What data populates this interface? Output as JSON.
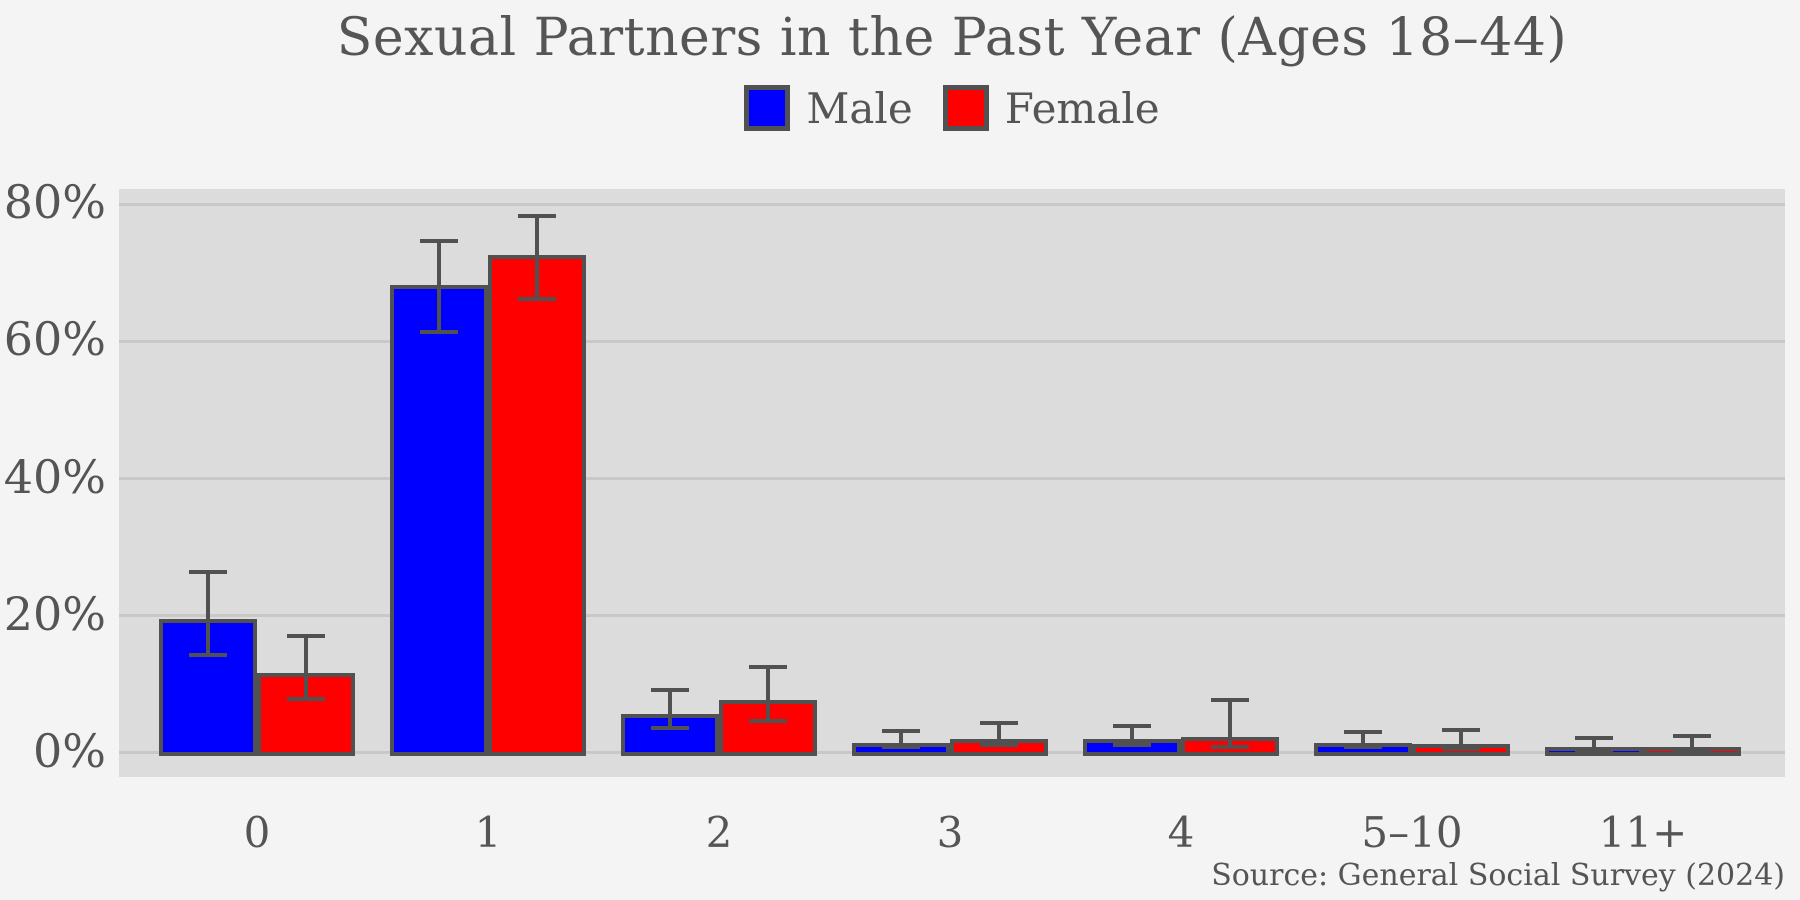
{
  "title": "Sexual Partners in the Past Year (Ages 18–44)",
  "source_credit": "Source: General Social Survey (2024)",
  "colors": {
    "page_background": "#f4f4f4",
    "plot_background": "#dcdcdc",
    "gridline": "#c8c8c8",
    "text": "#555555",
    "bar_edge": "#515151",
    "error_bar": "#515151",
    "male": "#0000ff",
    "female": "#ff0000"
  },
  "legend": {
    "items": [
      {
        "label": "Male",
        "color": "#0000ff"
      },
      {
        "label": "Female",
        "color": "#ff0000"
      }
    ]
  },
  "chart_data": {
    "type": "bar",
    "title": "Sexual Partners in the Past Year (Ages 18–44)",
    "xlabel": "",
    "ylabel": "",
    "categories": [
      "0",
      "1",
      "2",
      "3",
      "4",
      "5–10",
      "11+"
    ],
    "series": [
      {
        "name": "Male",
        "color": "#0000ff",
        "values": [
          19.5,
          68.2,
          5.7,
          1.4,
          2.0,
          1.4,
          0.9
        ],
        "err_low": [
          14.3,
          61.4,
          3.7,
          0.9,
          1.2,
          0.9,
          0.3
        ],
        "err_high": [
          26.4,
          74.6,
          9.2,
          3.2,
          4.0,
          3.1,
          2.2
        ]
      },
      {
        "name": "Female",
        "color": "#ff0000",
        "values": [
          11.6,
          72.6,
          7.7,
          2.1,
          2.3,
          1.3,
          0.9
        ],
        "err_low": [
          7.8,
          66.2,
          4.7,
          1.2,
          0.8,
          0.6,
          0.3
        ],
        "err_high": [
          17.1,
          78.2,
          12.5,
          4.3,
          7.7,
          3.4,
          2.5
        ]
      }
    ],
    "yticks": [
      {
        "value": 0,
        "label": "0%"
      },
      {
        "value": 20,
        "label": "20%"
      },
      {
        "value": 40,
        "label": "40%"
      },
      {
        "value": 60,
        "label": "60%"
      },
      {
        "value": 80,
        "label": "80%"
      }
    ],
    "ylim": [
      -3.5,
      82.2
    ],
    "grid": true,
    "error_bars": true,
    "legend_position": "top"
  }
}
